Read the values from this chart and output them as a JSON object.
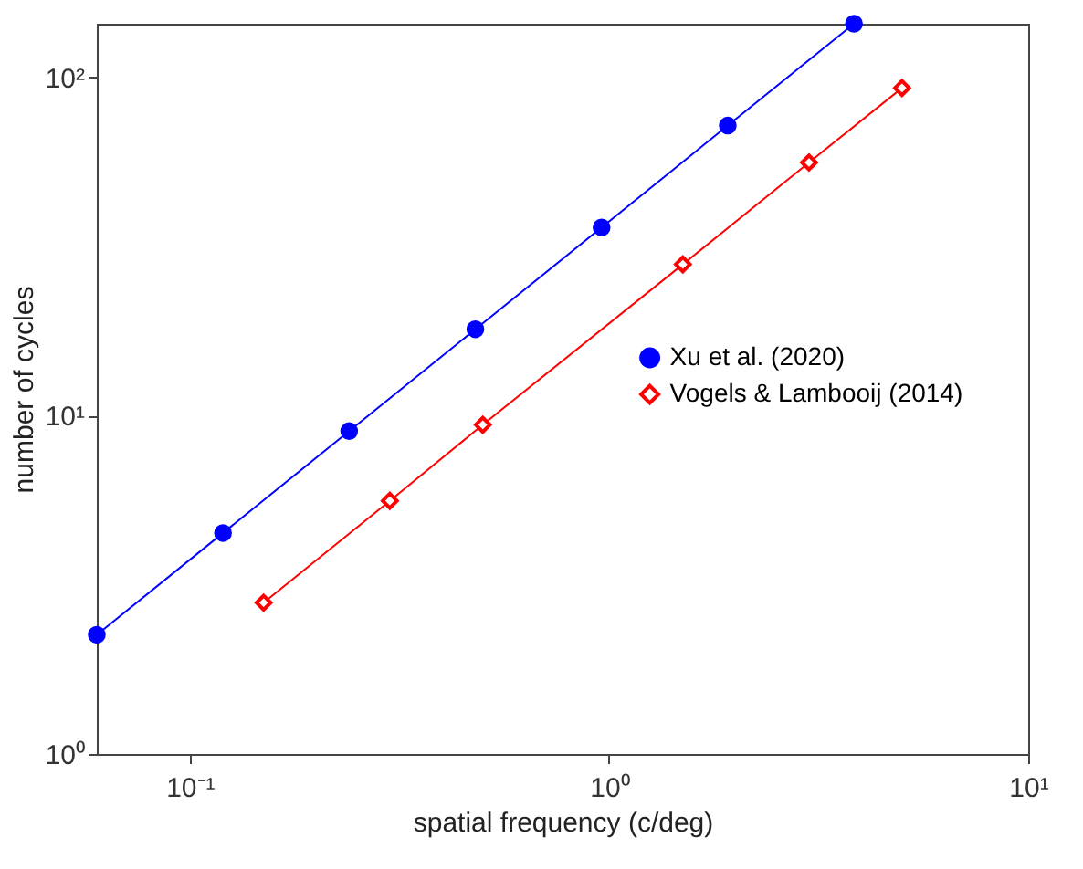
{
  "chart_data": {
    "type": "line",
    "xlabel": "spatial frequency (c/deg)",
    "ylabel": "number of cycles",
    "log": "xy",
    "grid": false,
    "legend": "right",
    "xlim": [
      0.06,
      10
    ],
    "xticks": [
      {
        "value": 0.1,
        "label": "10⁻¹"
      },
      {
        "value": 1,
        "label": "10⁰"
      },
      {
        "value": 10,
        "label": "10¹"
      }
    ],
    "ylim": [
      1,
      144
    ],
    "yticks": [
      {
        "value": 1,
        "label": "10⁰"
      },
      {
        "value": 10,
        "label": "10¹"
      },
      {
        "value": 100,
        "label": "10²"
      }
    ],
    "series": [
      {
        "name": "Xu et al. (2020)",
        "color": "#0000ff",
        "marker": "circle",
        "x": [
          0.06,
          0.12,
          0.24,
          0.48,
          0.96,
          1.92,
          3.84
        ],
        "values": [
          2.25,
          4.5,
          9,
          18,
          36,
          72,
          144
        ]
      },
      {
        "name": "Vogels & Lambooij (2014)",
        "color": "#ff0000",
        "marker": "diamond",
        "x": [
          0.15,
          0.3,
          0.5,
          1.5,
          3,
          5
        ],
        "values": [
          2.8,
          5.6,
          9.4,
          28,
          56,
          93
        ]
      }
    ]
  }
}
